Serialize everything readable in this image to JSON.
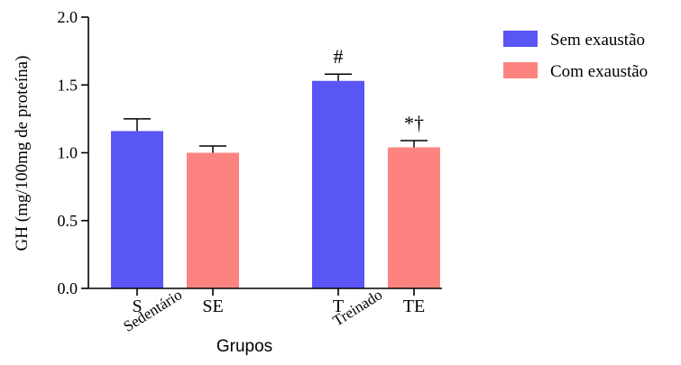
{
  "chart_data": {
    "type": "bar",
    "title": "",
    "xlabel": "Grupos",
    "ylabel": "GH (mg/100mg de proteína)",
    "ylim": [
      0,
      2.0
    ],
    "yticks": [
      "0.0",
      "0.5",
      "1.0",
      "1.5",
      "2.0"
    ],
    "grid": false,
    "legend_placement": "top-right",
    "bars": [
      {
        "label": "S",
        "group": "Sedentário",
        "series": "Sem exaustão",
        "value": 1.16,
        "error": 0.09,
        "annotation": ""
      },
      {
        "label": "SE",
        "group": "Sedentário",
        "series": "Com exaustão",
        "value": 1.0,
        "error": 0.05,
        "annotation": ""
      },
      {
        "label": "T",
        "group": "Treinado",
        "series": "Sem exaustão",
        "value": 1.53,
        "error": 0.05,
        "annotation": "#"
      },
      {
        "label": "TE",
        "group": "Treinado",
        "series": "Com exaustão",
        "value": 1.04,
        "error": 0.05,
        "annotation": "*†"
      }
    ],
    "groups": [
      "Sedentário",
      "Treinado"
    ],
    "series": [
      {
        "name": "Sem exaustão",
        "color": "#5a55f5"
      },
      {
        "name": "Com exaustão",
        "color": "#fc837f"
      }
    ]
  }
}
